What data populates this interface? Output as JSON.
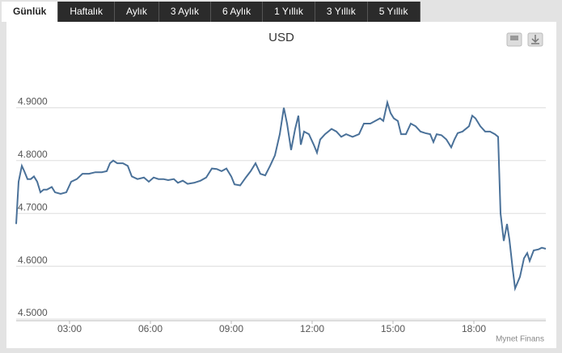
{
  "tabs": [
    "Günlük",
    "Haftalık",
    "Aylık",
    "3 Aylık",
    "6 Aylık",
    "1 Yıllık",
    "3 Yıllık",
    "5 Yıllık"
  ],
  "chart_data": {
    "type": "line",
    "title": "USD",
    "source": "Mynet Finans",
    "x": [
      1.02,
      1.11,
      1.23,
      1.32,
      1.44,
      1.56,
      1.68,
      1.8,
      1.92,
      2.04,
      2.16,
      2.34,
      2.46,
      2.67,
      2.88,
      3.06,
      3.27,
      3.48,
      3.72,
      3.96,
      4.2,
      4.38,
      4.5,
      4.62,
      4.77,
      4.98,
      5.16,
      5.31,
      5.52,
      5.76,
      5.94,
      6.12,
      6.3,
      6.48,
      6.66,
      6.87,
      7.02,
      7.2,
      7.38,
      7.62,
      7.86,
      8.07,
      8.28,
      8.46,
      8.64,
      8.82,
      9.0,
      9.12,
      9.33,
      9.54,
      9.72,
      9.9,
      10.08,
      10.26,
      10.44,
      10.62,
      10.8,
      10.95,
      11.07,
      11.22,
      11.37,
      11.49,
      11.58,
      11.7,
      11.88,
      12.06,
      12.18,
      12.3,
      12.48,
      12.72,
      12.9,
      13.08,
      13.26,
      13.5,
      13.74,
      13.92,
      14.16,
      14.34,
      14.52,
      14.64,
      14.79,
      14.91,
      15.03,
      15.18,
      15.3,
      15.48,
      15.66,
      15.84,
      16.02,
      16.2,
      16.38,
      16.5,
      16.62,
      16.8,
      16.98,
      17.16,
      17.28,
      17.4,
      17.58,
      17.82,
      17.94,
      18.06,
      18.24,
      18.42,
      18.6,
      18.78,
      18.9,
      18.99,
      19.11,
      19.23,
      19.32,
      19.44,
      19.53,
      19.71,
      19.86,
      19.98,
      20.07,
      20.22,
      20.4,
      20.52,
      20.67
    ],
    "series": [
      {
        "color": "#4a7199",
        "values": [
          4.68,
          4.76,
          4.79,
          4.78,
          4.765,
          4.765,
          4.77,
          4.76,
          4.74,
          4.745,
          4.745,
          4.75,
          4.74,
          4.737,
          4.74,
          4.76,
          4.765,
          4.775,
          4.775,
          4.778,
          4.778,
          4.78,
          4.795,
          4.8,
          4.795,
          4.795,
          4.79,
          4.77,
          4.765,
          4.768,
          4.76,
          4.768,
          4.765,
          4.765,
          4.763,
          4.765,
          4.758,
          4.762,
          4.756,
          4.758,
          4.762,
          4.768,
          4.785,
          4.784,
          4.78,
          4.785,
          4.77,
          4.755,
          4.753,
          4.768,
          4.78,
          4.795,
          4.775,
          4.772,
          4.79,
          4.81,
          4.85,
          4.9,
          4.87,
          4.82,
          4.86,
          4.885,
          4.83,
          4.855,
          4.85,
          4.83,
          4.815,
          4.84,
          4.85,
          4.86,
          4.855,
          4.845,
          4.85,
          4.845,
          4.85,
          4.87,
          4.87,
          4.875,
          4.88,
          4.875,
          4.91,
          4.89,
          4.88,
          4.875,
          4.85,
          4.85,
          4.87,
          4.865,
          4.855,
          4.852,
          4.85,
          4.835,
          4.85,
          4.848,
          4.84,
          4.825,
          4.84,
          4.852,
          4.855,
          4.865,
          4.885,
          4.88,
          4.865,
          4.855,
          4.855,
          4.85,
          4.845,
          4.7,
          4.648,
          4.68,
          4.65,
          4.595,
          4.558,
          4.58,
          4.615,
          4.625,
          4.61,
          4.63,
          4.632,
          4.635,
          4.633
        ]
      }
    ],
    "xlim": [
      1.02,
      20.67
    ],
    "xticks": [
      {
        "value": 3,
        "label": "03:00"
      },
      {
        "value": 6,
        "label": "06:00"
      },
      {
        "value": 9,
        "label": "09:00"
      },
      {
        "value": 12,
        "label": "12:00"
      },
      {
        "value": 15,
        "label": "15:00"
      },
      {
        "value": 18,
        "label": "18:00"
      }
    ],
    "ylim": [
      4.5,
      5.0
    ],
    "yticks": [
      {
        "value": 4.5,
        "label": "4.5000"
      },
      {
        "value": 4.6,
        "label": "4.6000"
      },
      {
        "value": 4.7,
        "label": "4.7000"
      },
      {
        "value": 4.8,
        "label": "4.8000"
      },
      {
        "value": 4.9,
        "label": "4.9000"
      }
    ],
    "grid": true
  }
}
